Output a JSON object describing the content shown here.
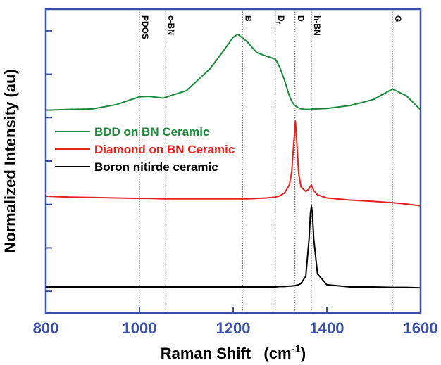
{
  "chart_data": {
    "type": "line",
    "ylabel": "Normalized Intensity (au)",
    "xlabel": {
      "text": "Raman Shift   (cm",
      "superscript": "-1",
      "end": ")"
    },
    "x": [
      800,
      850,
      900,
      950,
      1000,
      1020,
      1050,
      1100,
      1150,
      1180,
      1200,
      1210,
      1230,
      1250,
      1270,
      1290,
      1300,
      1310,
      1320,
      1325,
      1330,
      1333,
      1336,
      1340,
      1345,
      1355,
      1362,
      1365,
      1367,
      1369,
      1372,
      1380,
      1400,
      1450,
      1500,
      1540,
      1570,
      1600
    ],
    "series": [
      {
        "name": "BDD on BN Ceramic",
        "color": "#1a8a3a",
        "values": [
          4.17,
          4.19,
          4.2,
          4.3,
          4.48,
          4.49,
          4.45,
          4.62,
          5.12,
          5.55,
          5.85,
          5.92,
          5.75,
          5.5,
          5.42,
          5.35,
          5.15,
          4.85,
          4.5,
          4.38,
          4.3,
          4.27,
          4.25,
          4.22,
          4.2,
          4.19,
          4.19,
          4.19,
          4.2,
          4.2,
          4.2,
          4.2,
          4.21,
          4.28,
          4.42,
          4.66,
          4.5,
          4.18
        ]
      },
      {
        "name": "Diamond on BN Ceramic",
        "color": "#e8201e",
        "values": [
          2.19,
          2.17,
          2.16,
          2.15,
          2.14,
          2.14,
          2.13,
          2.13,
          2.13,
          2.13,
          2.13,
          2.13,
          2.13,
          2.14,
          2.15,
          2.17,
          2.2,
          2.27,
          2.45,
          2.75,
          3.5,
          3.92,
          3.4,
          2.7,
          2.4,
          2.3,
          2.36,
          2.42,
          2.45,
          2.4,
          2.32,
          2.22,
          2.15,
          2.1,
          2.07,
          2.04,
          2.01,
          1.97
        ]
      },
      {
        "name": "Boron nitirde ceramic",
        "color": "#000000",
        "values": [
          0.1,
          0.1,
          0.1,
          0.1,
          0.1,
          0.1,
          0.1,
          0.1,
          0.1,
          0.1,
          0.1,
          0.1,
          0.1,
          0.1,
          0.1,
          0.1,
          0.11,
          0.11,
          0.12,
          0.12,
          0.13,
          0.13,
          0.14,
          0.15,
          0.18,
          0.35,
          1.2,
          1.8,
          1.96,
          1.8,
          1.2,
          0.4,
          0.15,
          0.1,
          0.1,
          0.09,
          0.09,
          0.08
        ]
      }
    ],
    "xlim": [
      800,
      1600
    ],
    "xticks": [
      800,
      1000,
      1200,
      1400,
      1600
    ],
    "ylim": [
      -0.5,
      6.5
    ],
    "yticks": [
      0,
      1,
      2,
      3,
      4,
      5,
      6
    ],
    "axis_color": "#3a4fa8",
    "legend": "upper-left",
    "annotations": [
      {
        "label": "PDOS",
        "x": 1000
      },
      {
        "label": "c-BN",
        "x": 1056
      },
      {
        "label": "B",
        "x": 1220
      },
      {
        "label": "D",
        "subscript": "f",
        "x": 1290
      },
      {
        "label": "D",
        "x": 1332
      },
      {
        "label": "h-BN",
        "x": 1367
      },
      {
        "label": "G",
        "x": 1540
      }
    ]
  }
}
